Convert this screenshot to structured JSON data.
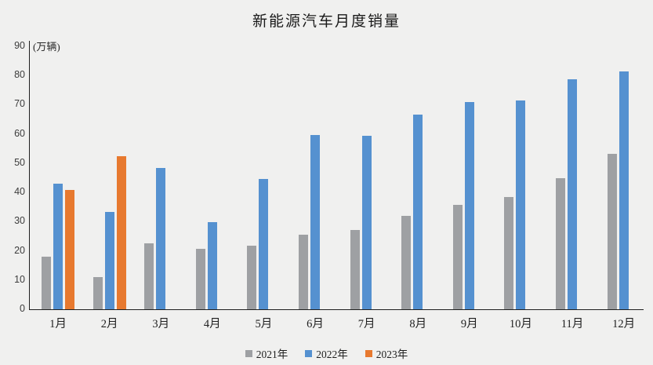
{
  "title": "新能源汽车月度销量",
  "unit_label": "(万辆)",
  "chart_data": {
    "type": "bar",
    "title": "新能源汽车月度销量",
    "ylabel": "(万辆)",
    "categories": [
      "1月",
      "2月",
      "3月",
      "4月",
      "5月",
      "6月",
      "7月",
      "8月",
      "9月",
      "10月",
      "11月",
      "12月"
    ],
    "series": [
      {
        "name": "2021年",
        "color": "#9ea0a3",
        "values": [
          17.9,
          11.0,
          22.6,
          20.6,
          21.7,
          25.6,
          27.1,
          32.1,
          35.7,
          38.3,
          45.0,
          53.1
        ]
      },
      {
        "name": "2022年",
        "color": "#5591d0",
        "values": [
          43.1,
          33.4,
          48.4,
          29.9,
          44.7,
          59.6,
          59.3,
          66.6,
          70.8,
          71.4,
          78.6,
          81.3
        ]
      },
      {
        "name": "2023年",
        "color": "#e7792f",
        "values": [
          40.8,
          52.5,
          null,
          null,
          null,
          null,
          null,
          null,
          null,
          null,
          null,
          null
        ]
      }
    ],
    "ylim": [
      0,
      90
    ],
    "yticks": [
      0,
      10,
      20,
      30,
      40,
      50,
      60,
      70,
      80,
      90
    ],
    "grid": false,
    "legend_position": "bottom"
  }
}
